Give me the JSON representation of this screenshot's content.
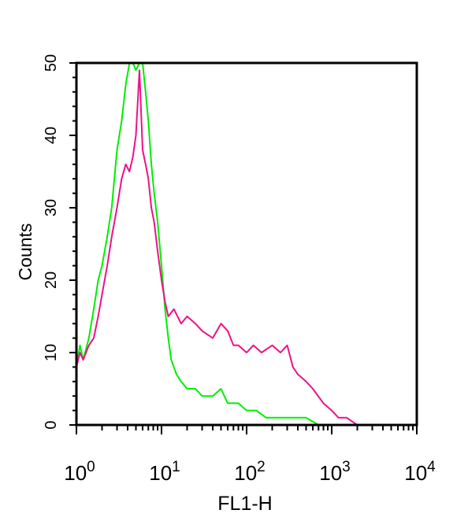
{
  "chart_data": {
    "type": "line",
    "title": "",
    "xlabel": "FL1-H",
    "ylabel": "Counts",
    "xscale": "log",
    "xlim": [
      1,
      10000
    ],
    "ylim": [
      0,
      50
    ],
    "grid": false,
    "x_ticks": [
      {
        "value": 1,
        "base": "10",
        "exp": "0"
      },
      {
        "value": 10,
        "base": "10",
        "exp": "1"
      },
      {
        "value": 100,
        "base": "10",
        "exp": "2"
      },
      {
        "value": 1000,
        "base": "10",
        "exp": "3"
      },
      {
        "value": 10000,
        "base": "10",
        "exp": "4"
      }
    ],
    "y_ticks": [
      "0",
      "10",
      "20",
      "30",
      "40",
      "50"
    ],
    "series": [
      {
        "color": "#00ee00",
        "x": [
          1.0,
          1.1,
          1.2,
          1.4,
          1.6,
          1.8,
          2.0,
          2.3,
          2.6,
          3.0,
          3.4,
          3.8,
          4.2,
          4.6,
          5.0,
          5.5,
          6.0,
          6.5,
          7.0,
          7.6,
          8.2,
          9.0,
          10,
          11,
          12,
          13,
          15,
          17,
          20,
          25,
          30,
          40,
          50,
          60,
          80,
          100,
          130,
          170,
          200,
          250,
          300,
          400,
          500,
          700,
          1000,
          1300,
          2000,
          5000,
          10000
        ],
        "y": [
          8,
          11,
          9,
          12,
          16,
          20,
          22,
          26,
          30,
          38,
          42,
          47,
          50,
          50,
          49,
          50,
          50,
          46,
          42,
          36,
          32,
          28,
          22,
          16,
          12,
          9,
          7,
          6,
          5,
          5,
          4,
          4,
          5,
          3,
          3,
          2,
          2,
          1,
          1,
          1,
          1,
          1,
          1,
          0,
          0,
          0,
          0,
          0,
          0
        ]
      },
      {
        "color": "#ee1188",
        "x": [
          1.0,
          1.1,
          1.2,
          1.4,
          1.6,
          1.8,
          2.0,
          2.3,
          2.6,
          3.0,
          3.4,
          3.8,
          4.2,
          4.6,
          5.0,
          5.5,
          6.0,
          6.5,
          7.0,
          7.6,
          8.2,
          9.0,
          10,
          11,
          12,
          14,
          17,
          20,
          25,
          30,
          40,
          50,
          60,
          70,
          80,
          100,
          120,
          150,
          200,
          250,
          300,
          350,
          400,
          500,
          600,
          800,
          1000,
          1200,
          1500,
          2000,
          5000,
          10000
        ],
        "y": [
          8,
          10,
          9,
          11,
          12,
          15,
          18,
          22,
          26,
          30,
          34,
          36,
          35,
          37,
          40,
          49,
          38,
          36,
          34,
          30,
          28,
          24,
          20,
          17,
          15,
          16,
          14,
          15,
          14,
          13,
          12,
          14,
          13,
          11,
          11,
          10,
          11,
          10,
          11,
          10,
          11,
          8,
          7,
          6,
          5,
          3,
          2,
          1,
          1,
          0,
          0,
          0
        ]
      }
    ]
  }
}
